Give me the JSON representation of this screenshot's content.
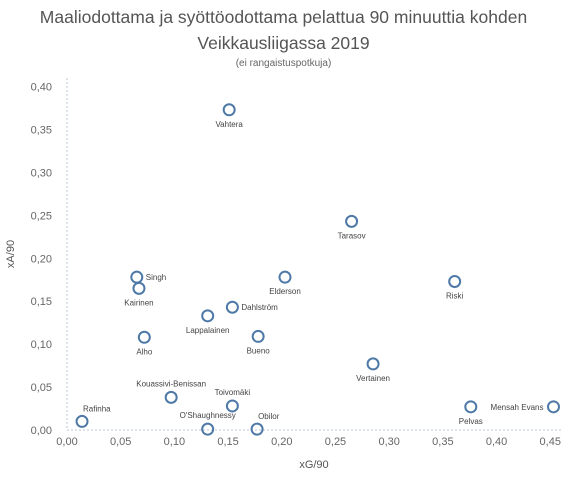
{
  "chart_data": {
    "type": "scatter",
    "title_line1": "Maaliodottama ja syöttöodottama pelattua 90 minuuttia kohden",
    "title_line2": "Veikkausliigassa 2019",
    "subtitle": "(ei rangaistuspotkuja)",
    "xlabel": "xG/90",
    "ylabel": "xA/90",
    "xlim": [
      0,
      0.46
    ],
    "ylim": [
      0,
      0.41
    ],
    "x_ticks": [
      "0,00",
      "0,05",
      "0,10",
      "0,15",
      "0,20",
      "0,25",
      "0,30",
      "0,35",
      "0,40",
      "0,45"
    ],
    "x_tick_values": [
      0,
      0.05,
      0.1,
      0.15,
      0.2,
      0.25,
      0.3,
      0.35,
      0.4,
      0.45
    ],
    "y_ticks": [
      "0,00",
      "0,05",
      "0,10",
      "0,15",
      "0,20",
      "0,25",
      "0,30",
      "0,35",
      "0,40"
    ],
    "y_tick_values": [
      0,
      0.05,
      0.1,
      0.15,
      0.2,
      0.25,
      0.3,
      0.35,
      0.4
    ],
    "marker_color": "#4e79a7",
    "points": [
      {
        "name": "Vahtera",
        "x": 0.151,
        "y": 0.373,
        "label_pos": "below"
      },
      {
        "name": "Tarasov",
        "x": 0.265,
        "y": 0.243,
        "label_pos": "below"
      },
      {
        "name": "Singh",
        "x": 0.065,
        "y": 0.178,
        "label_pos": "right"
      },
      {
        "name": "Kairinen",
        "x": 0.067,
        "y": 0.165,
        "label_pos": "below"
      },
      {
        "name": "Elderson",
        "x": 0.203,
        "y": 0.178,
        "label_pos": "below"
      },
      {
        "name": "Riski",
        "x": 0.361,
        "y": 0.173,
        "label_pos": "below"
      },
      {
        "name": "Dahlström",
        "x": 0.154,
        "y": 0.143,
        "label_pos": "right"
      },
      {
        "name": "Lappalainen",
        "x": 0.131,
        "y": 0.133,
        "label_pos": "below"
      },
      {
        "name": "Alho",
        "x": 0.072,
        "y": 0.108,
        "label_pos": "below"
      },
      {
        "name": "Bueno",
        "x": 0.178,
        "y": 0.109,
        "label_pos": "below"
      },
      {
        "name": "Vertainen",
        "x": 0.285,
        "y": 0.077,
        "label_pos": "below"
      },
      {
        "name": "Kouassivi-Benissan",
        "x": 0.097,
        "y": 0.038,
        "label_pos": "above"
      },
      {
        "name": "Toivomäki",
        "x": 0.154,
        "y": 0.028,
        "label_pos": "above"
      },
      {
        "name": "Pelvas",
        "x": 0.376,
        "y": 0.027,
        "label_pos": "below"
      },
      {
        "name": "Mensah Evans",
        "x": 0.453,
        "y": 0.027,
        "label_pos": "left"
      },
      {
        "name": "Rafinha",
        "x": 0.014,
        "y": 0.01,
        "label_pos": "above-right"
      },
      {
        "name": "O'Shaughnessy",
        "x": 0.131,
        "y": 0.001,
        "label_pos": "above"
      },
      {
        "name": "Obilor",
        "x": 0.177,
        "y": 0.001,
        "label_pos": "above-right"
      }
    ]
  }
}
